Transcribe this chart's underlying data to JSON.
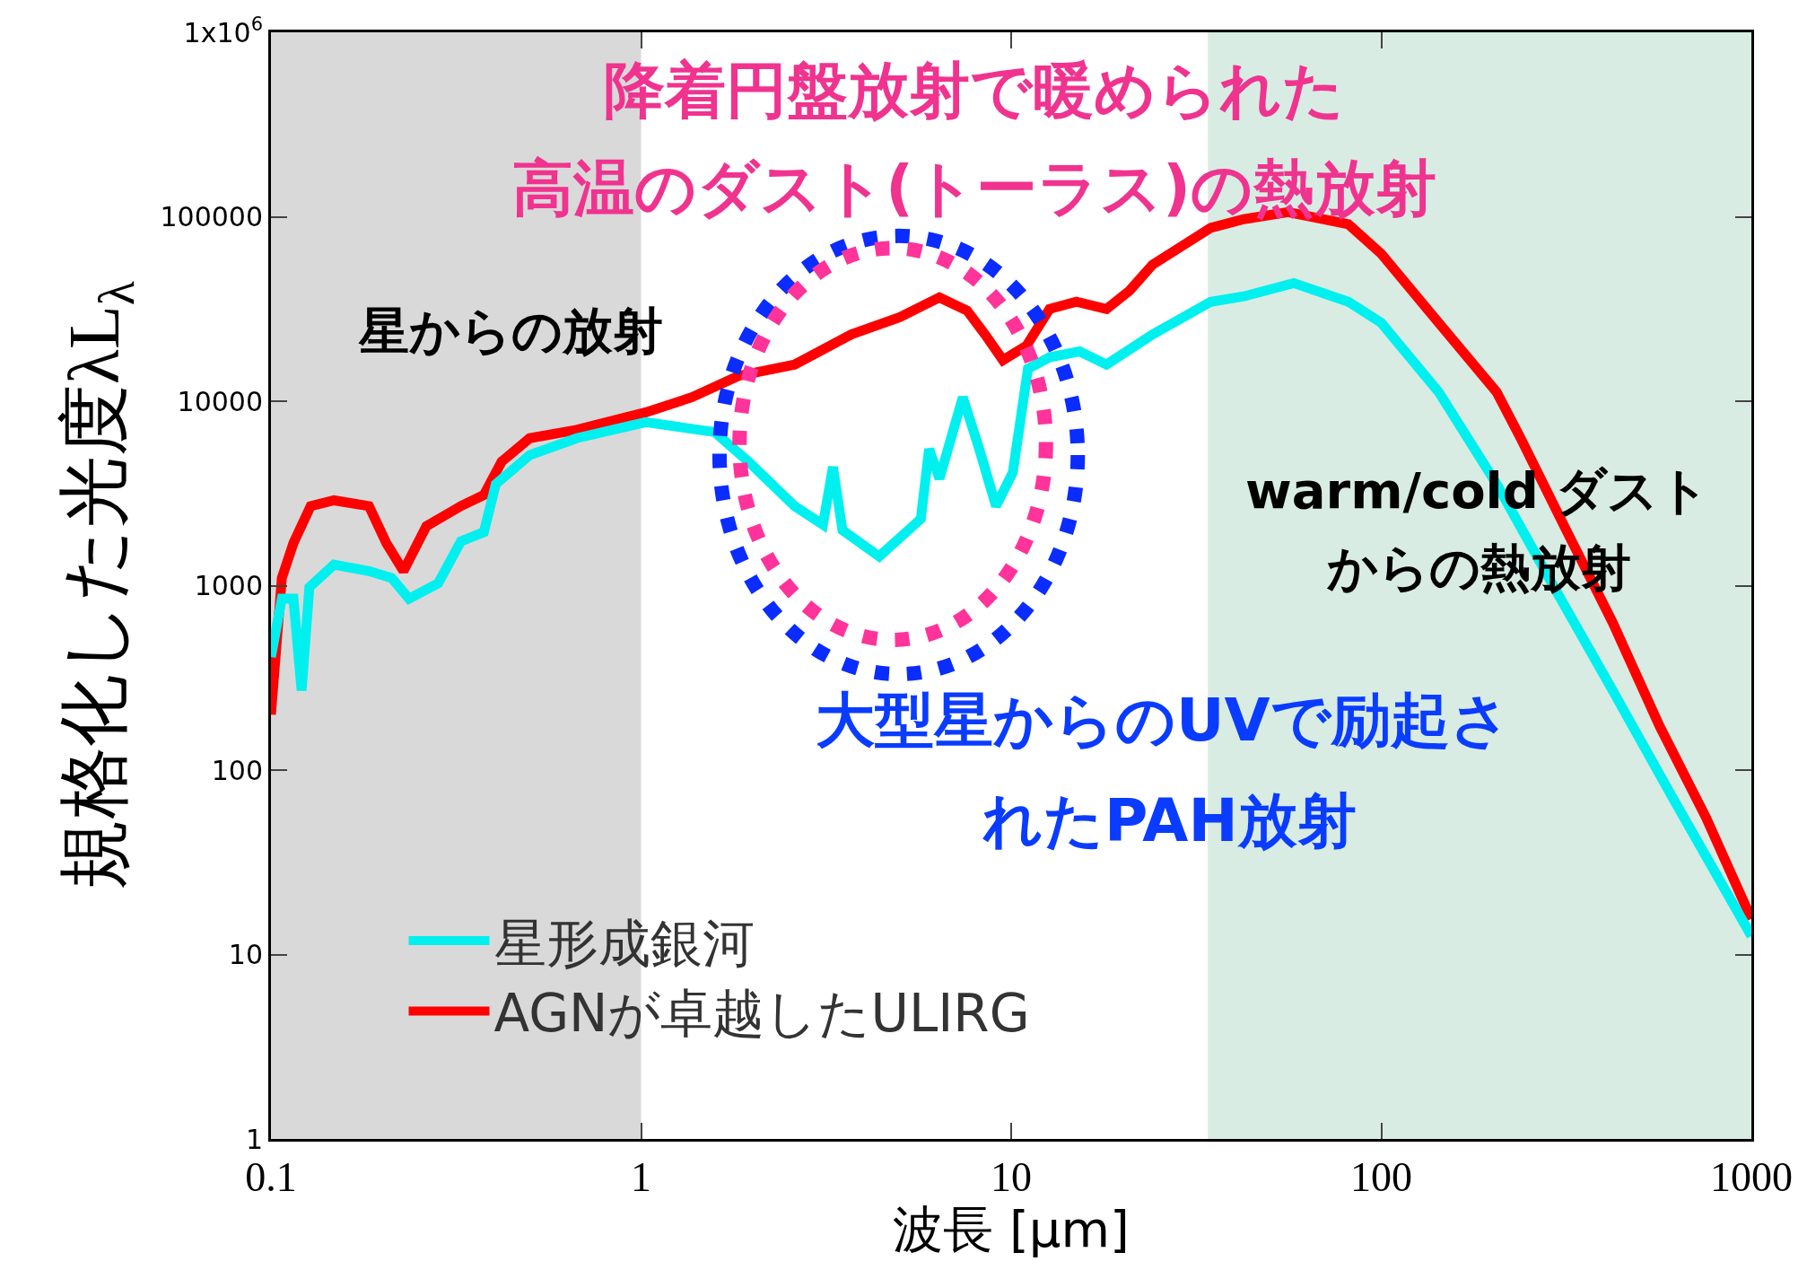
{
  "chart_data": {
    "type": "line",
    "xlabel": "波長 [μm]",
    "ylabel": "規格化した光度λL$_{λ}$",
    "log": "xy",
    "xlim": [
      0.1,
      1000
    ],
    "ylim": [
      1,
      1000000
    ],
    "xticks": [
      0.1,
      1,
      10,
      100,
      1000
    ],
    "yticks": [
      1,
      10,
      100,
      1000,
      10000,
      100000,
      {
        "value": 1000000,
        "label": "1x10$^{6}$"
      }
    ],
    "grid": false,
    "legend": "bottom left",
    "marker": "none",
    "line_style": "solid",
    "series": [
      {
        "name": "星形成銀河",
        "color": "#00f0f0",
        "x": [
          0.1,
          0.107,
          0.115,
          0.121,
          0.127,
          0.148,
          0.184,
          0.212,
          0.236,
          0.283,
          0.326,
          0.376,
          0.405,
          0.5,
          0.67,
          1.03,
          1.58,
          1.95,
          2.6,
          3.1,
          3.3,
          3.5,
          4.4,
          5.7,
          6.0,
          6.4,
          7.4,
          8.2,
          9.1,
          10.1,
          11.1,
          12.7,
          15.3,
          18.1,
          24.1,
          34.6,
          42.5,
          58,
          81.5,
          100,
          143,
          205,
          294,
          422,
          610,
          1000
        ],
        "values": [
          410,
          850,
          850,
          270,
          980,
          1300,
          1200,
          1100,
          850,
          1030,
          1740,
          1950,
          3550,
          5100,
          6300,
          7700,
          6800,
          4700,
          2700,
          2140,
          4400,
          2000,
          1440,
          2300,
          5500,
          3800,
          10500,
          5500,
          2700,
          4100,
          15000,
          17300,
          18600,
          15800,
          23000,
          34600,
          37000,
          43700,
          34600,
          26600,
          11200,
          3550,
          970,
          270,
          72,
          12.6
        ]
      },
      {
        "name": "AGNが卓越したULIRG",
        "color": "#ff0000",
        "x": [
          0.1,
          0.107,
          0.115,
          0.128,
          0.148,
          0.184,
          0.205,
          0.228,
          0.263,
          0.326,
          0.376,
          0.42,
          0.5,
          0.67,
          1.03,
          1.37,
          1.83,
          2.6,
          3.7,
          5.0,
          6.4,
          7.6,
          8.5,
          9.5,
          11.0,
          12.7,
          15.0,
          18.1,
          20.9,
          24.1,
          34.6,
          42.5,
          56,
          81.5,
          100,
          143,
          205,
          238,
          316,
          422,
          565,
          755,
          1000
        ],
        "values": [
          200,
          1100,
          1700,
          2700,
          2900,
          2700,
          1700,
          1200,
          2100,
          2700,
          3100,
          4700,
          6300,
          7000,
          8700,
          10500,
          13700,
          15800,
          23000,
          28500,
          36500,
          31000,
          23000,
          16700,
          20000,
          31600,
          34600,
          31600,
          39800,
          55000,
          87000,
          97000,
          106000,
          91000,
          63000,
          26600,
          11200,
          6300,
          2000,
          630,
          173,
          55,
          15.6
        ]
      }
    ],
    "bands": [
      {
        "axis": "x",
        "from": 0.1,
        "to": 1,
        "color": "#d9d9d9"
      },
      {
        "axis": "x",
        "from": 34,
        "to": 1000,
        "color": "#d8ece3"
      }
    ],
    "annotations": [
      "降着円盤放射で暖められた",
      "高温のダスト(トーラス)の熱放射",
      "星からの放射",
      "warm/cold ダスト",
      "からの熱放射",
      "大型星からのUVで励起さ",
      "れたPAH放射"
    ]
  }
}
